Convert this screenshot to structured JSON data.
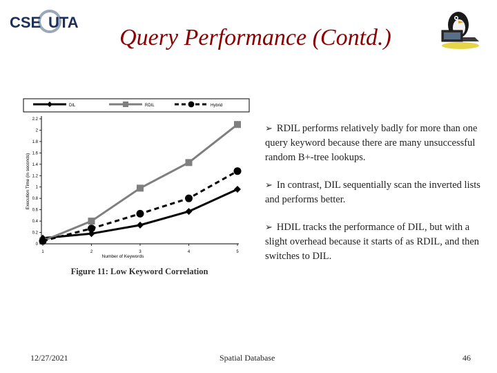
{
  "header": {
    "logo_text_a": "CSE",
    "logo_text_b": "UTA",
    "title": "Query Performance (Contd.)",
    "mascot_icon": "penguin-laptop-icon"
  },
  "chart_data": {
    "type": "line",
    "caption": "Figure 11: Low Keyword Correlation",
    "xlabel": "Number of Keywords",
    "ylabel": "Execution Time (in seconds)",
    "x": [
      1,
      2,
      3,
      4,
      5
    ],
    "xticks": [
      "1",
      "2",
      "3",
      "4",
      "5"
    ],
    "ylim": [
      0,
      2.2
    ],
    "yticks": [
      "0",
      "0.2",
      "0.4",
      "0.6",
      "0.8",
      "1",
      "1.2",
      "1.4",
      "1.6",
      "1.8",
      "2",
      "2.2"
    ],
    "series": [
      {
        "name": "DIL",
        "marker": "diamond",
        "color": "#000000",
        "dash": false,
        "values": [
          0.1,
          0.18,
          0.33,
          0.57,
          0.96
        ]
      },
      {
        "name": "RDIL",
        "marker": "square",
        "color": "#7f7f7f",
        "dash": false,
        "values": [
          0.05,
          0.4,
          0.98,
          1.43,
          2.1
        ]
      },
      {
        "name": "Hybrid",
        "marker": "circle",
        "color": "#000000",
        "dash": true,
        "values": [
          0.05,
          0.27,
          0.53,
          0.8,
          1.28
        ]
      }
    ],
    "legend": "top"
  },
  "bullets": [
    "RDIL performs relatively badly for more than one query keyword because there are many unsuccessful random B+-tree lookups.",
    "In contrast, DIL sequentially scan the inverted lists and performs better.",
    "HDIL tracks the performance of DIL, but with a slight overhead because it starts of as RDIL, and then switches to DIL."
  ],
  "footer": {
    "date": "12/27/2021",
    "center": "Spatial Database",
    "page": "46"
  }
}
